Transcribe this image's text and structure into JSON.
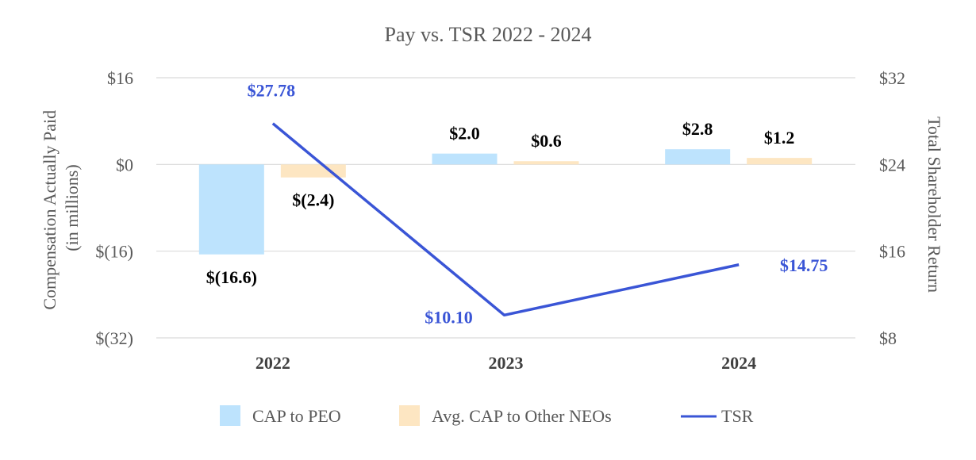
{
  "chart_data": {
    "type": "bar",
    "title": "Pay vs. TSR 2022 - 2024",
    "categories": [
      "2022",
      "2023",
      "2024"
    ],
    "ylabel_left": [
      "Compensation Actually Paid",
      "(in millions)"
    ],
    "ylabel_right": "Total Shareholder Return",
    "left_axis": {
      "min": -32,
      "max": 16,
      "ticks": [
        16,
        0,
        -16,
        -32
      ],
      "tick_labels": [
        "$16",
        "$0",
        "$(16)",
        "$(32)"
      ]
    },
    "right_axis": {
      "min": 8,
      "max": 32,
      "ticks": [
        32,
        24,
        16,
        8
      ],
      "tick_labels": [
        "$32",
        "$24",
        "$16",
        "$8"
      ]
    },
    "grid": true,
    "legend_position": "bottom",
    "series": [
      {
        "name": "CAP to PEO",
        "kind": "bar",
        "axis": "left",
        "color": "#bde3fd",
        "values": [
          -16.6,
          2.0,
          2.8
        ],
        "labels": [
          "$(16.6)",
          "$2.0",
          "$2.8"
        ]
      },
      {
        "name": "Avg. CAP to Other NEOs",
        "kind": "bar",
        "axis": "left",
        "color": "#fde6c2",
        "values": [
          -2.4,
          0.6,
          1.2
        ],
        "labels": [
          "$(2.4)",
          "$0.6",
          "$1.2"
        ]
      },
      {
        "name": "TSR",
        "kind": "line",
        "axis": "right",
        "color": "#3a55d6",
        "values": [
          27.78,
          10.1,
          14.75
        ],
        "labels": [
          "$27.78",
          "$10.10",
          "$14.75"
        ]
      }
    ]
  }
}
